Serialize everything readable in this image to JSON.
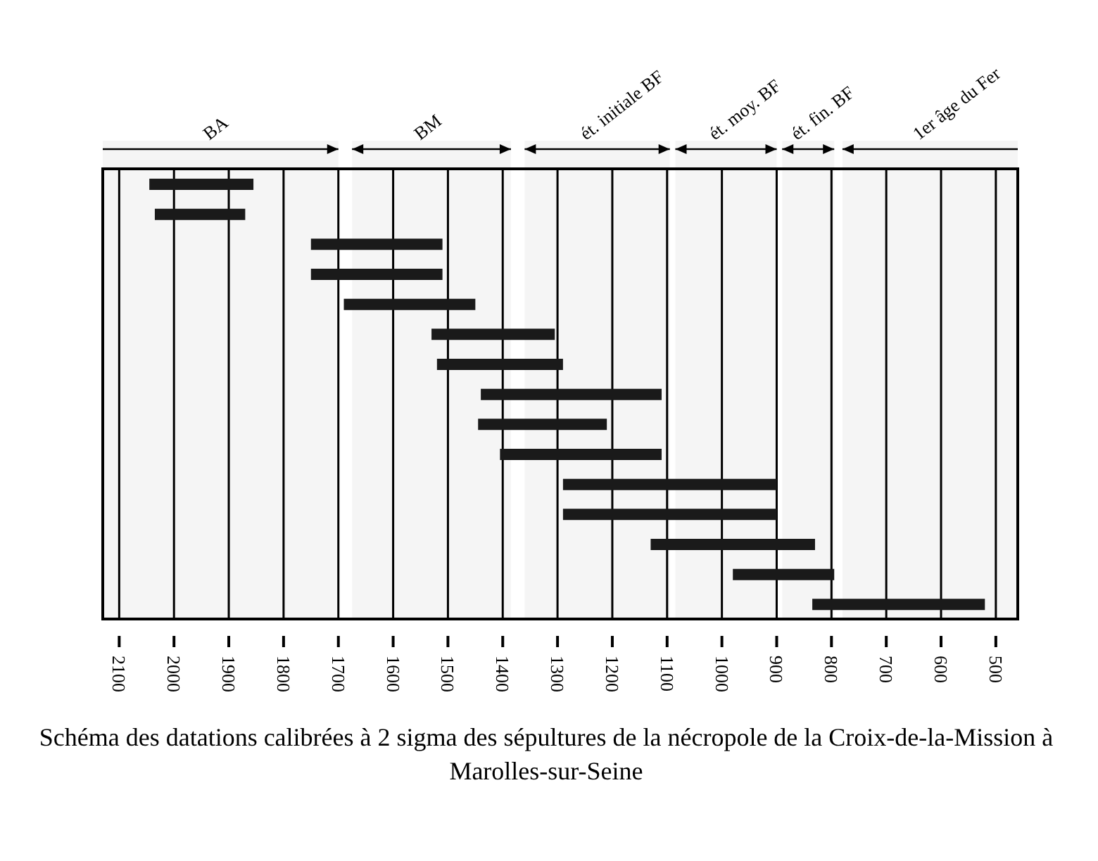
{
  "chart_data": {
    "type": "bar",
    "orientation": "horizontal",
    "title": "Schéma des datations calibrées à 2 sigma des sépultures de la nécropole de la Croix-de-la-Mission à Marolles-sur-Seine",
    "categories": [
      null,
      null,
      null,
      null,
      null,
      null,
      null,
      null,
      null,
      null,
      null,
      null,
      null,
      null,
      null
    ],
    "base": [
      1855,
      1870,
      1510,
      1510,
      1450,
      1305,
      1290,
      1110,
      1210,
      1110,
      900,
      900,
      830,
      795,
      520
    ],
    "values": [
      190,
      165,
      240,
      240,
      240,
      225,
      230,
      330,
      235,
      295,
      390,
      390,
      300,
      185,
      315
    ],
    "color": "#1a1a1a",
    "xlim": [
      2130,
      460
    ],
    "xticks": [
      2100,
      2000,
      1900,
      1800,
      1700,
      1600,
      1500,
      1400,
      1300,
      1200,
      1100,
      1000,
      900,
      800,
      700,
      600,
      500
    ],
    "grid": "x",
    "tick_labels": "x",
    "bands": [
      {
        "axis": "x",
        "from": 2130,
        "to": 1700,
        "label": "BA"
      },
      {
        "axis": "x",
        "from": 1675,
        "to": 1385,
        "label": "BM"
      },
      {
        "axis": "x",
        "from": 1360,
        "to": 1095,
        "label": "ét. initiale BF"
      },
      {
        "axis": "x",
        "from": 1085,
        "to": 900,
        "label": "ét. moy. BF"
      },
      {
        "axis": "x",
        "from": 890,
        "to": 795,
        "label": "ét. fin. BF"
      },
      {
        "axis": "x",
        "from": 780,
        "to": 460,
        "label": "1er âge du Fer"
      }
    ]
  }
}
